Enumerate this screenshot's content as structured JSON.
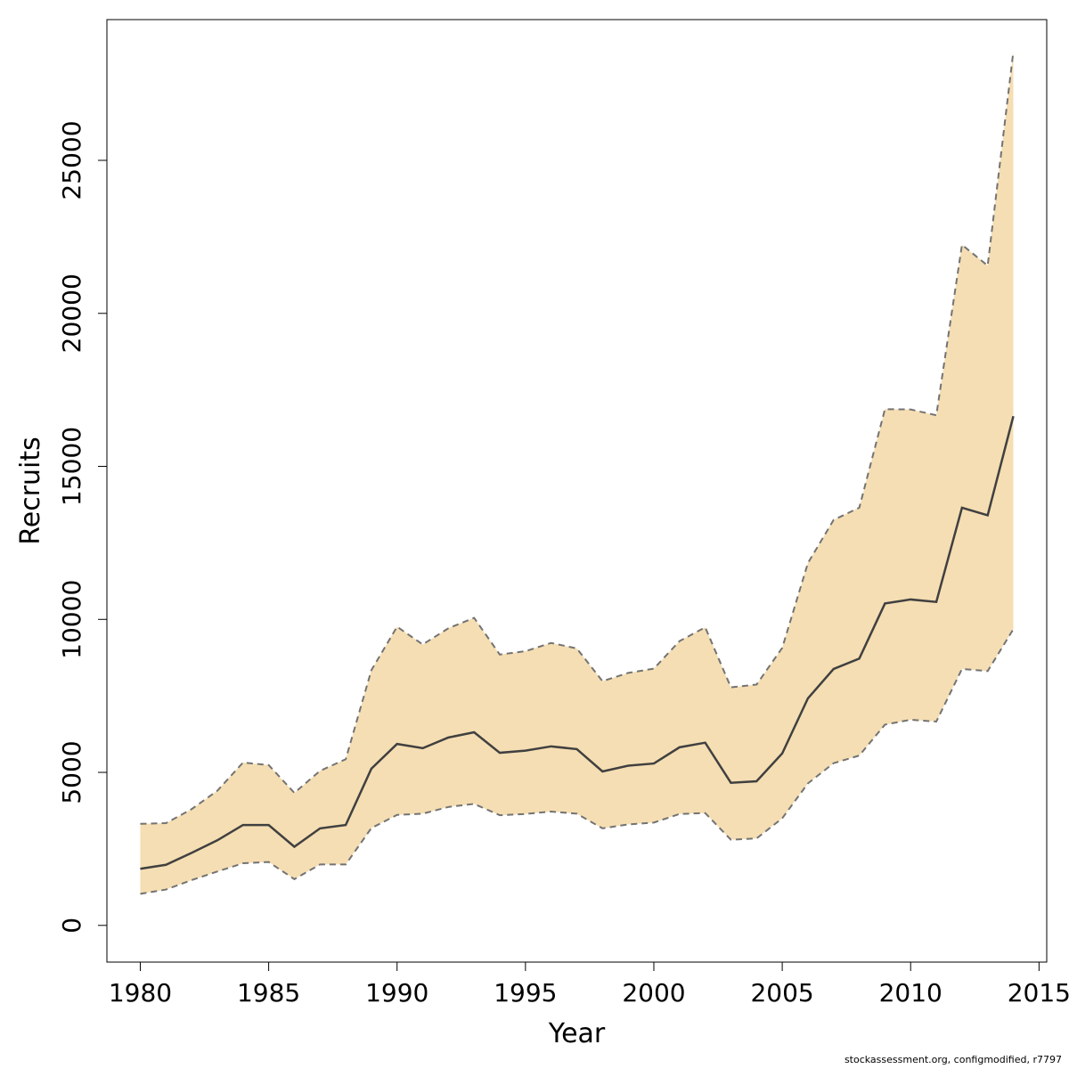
{
  "chart_data": {
    "type": "line",
    "xlabel": "Year",
    "ylabel": "Recruits",
    "xlim": [
      1978.7,
      2015.3
    ],
    "ylim": [
      -1200,
      29600
    ],
    "x_ticks": [
      1980,
      1985,
      1990,
      1995,
      2000,
      2005,
      2010,
      2015
    ],
    "y_ticks": [
      0,
      5000,
      10000,
      15000,
      20000,
      25000
    ],
    "grid": false,
    "legend": "none",
    "x": [
      1980,
      1981,
      1982,
      1983,
      1984,
      1985,
      1986,
      1987,
      1988,
      1989,
      1990,
      1991,
      1992,
      1993,
      1994,
      1995,
      1996,
      1997,
      1998,
      1999,
      2000,
      2001,
      2002,
      2003,
      2004,
      2005,
      2006,
      2007,
      2008,
      2009,
      2010,
      2011,
      2012,
      2013,
      2014
    ],
    "series": [
      {
        "role": "estimate",
        "values": [
          1850,
          1980,
          2370,
          2780,
          3280,
          3280,
          2570,
          3170,
          3280,
          5120,
          5930,
          5790,
          6140,
          6310,
          5640,
          5710,
          5850,
          5760,
          5030,
          5220,
          5290,
          5820,
          5970,
          4660,
          4710,
          5620,
          7420,
          8380,
          8720,
          10520,
          10650,
          10570,
          13650,
          13400,
          16640
        ]
      },
      {
        "role": "upper",
        "values": [
          3320,
          3340,
          3800,
          4400,
          5320,
          5240,
          4330,
          5050,
          5430,
          8340,
          9760,
          9180,
          9710,
          10050,
          8850,
          8960,
          9230,
          9050,
          7980,
          8250,
          8390,
          9290,
          9740,
          7780,
          7870,
          9070,
          11840,
          13250,
          13650,
          16870,
          16860,
          16670,
          22240,
          21560,
          28560
        ]
      },
      {
        "role": "lower",
        "values": [
          1030,
          1170,
          1480,
          1760,
          2030,
          2070,
          1510,
          1990,
          1990,
          3180,
          3610,
          3650,
          3870,
          3970,
          3600,
          3640,
          3720,
          3650,
          3170,
          3300,
          3360,
          3640,
          3670,
          2800,
          2840,
          3500,
          4640,
          5300,
          5550,
          6560,
          6720,
          6660,
          8380,
          8310,
          9680
        ]
      }
    ],
    "colors": {
      "band_fill": "#f5deb3",
      "band_border": "#737373",
      "estimate_line": "#404040",
      "axis": "#000000"
    }
  },
  "footer": {
    "credit": "stockassessment.org, configmodified, r7797"
  }
}
